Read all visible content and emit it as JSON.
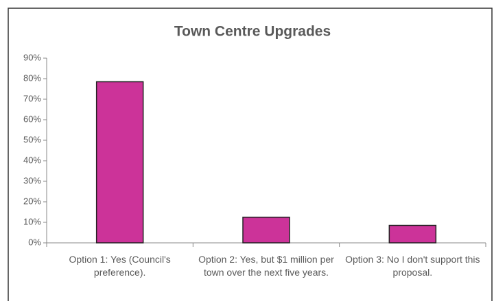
{
  "chart_data": {
    "type": "bar",
    "title": "Town Centre Upgrades",
    "categories": [
      "Option 1: Yes (Council's preference).",
      "Option 2: Yes, but $1 million per town over the next five years.",
      "Option 3: No I don't support this proposal."
    ],
    "values": [
      78.5,
      12.5,
      8.5
    ],
    "color": "#cc3399",
    "ylim": [
      0,
      90
    ],
    "yticks": [
      {
        "value": 0,
        "label": "0%"
      },
      {
        "value": 10,
        "label": "10%"
      },
      {
        "value": 20,
        "label": "20%"
      },
      {
        "value": 30,
        "label": "30%"
      },
      {
        "value": 40,
        "label": "40%"
      },
      {
        "value": 50,
        "label": "50%"
      },
      {
        "value": 60,
        "label": "60%"
      },
      {
        "value": 70,
        "label": "70%"
      },
      {
        "value": 80,
        "label": "80%"
      },
      {
        "value": 90,
        "label": "90%"
      }
    ],
    "grid": false
  }
}
